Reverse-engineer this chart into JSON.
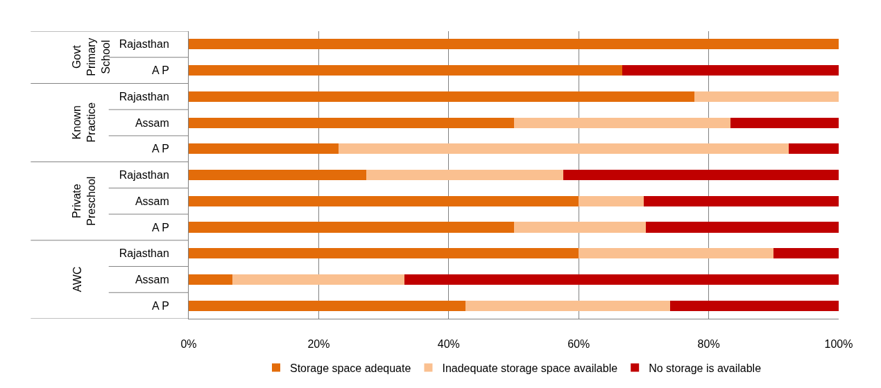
{
  "chart_data": {
    "type": "bar",
    "orientation": "horizontal",
    "stacked": true,
    "categories": [
      "Rajasthan",
      "A P",
      "Rajasthan",
      "Assam",
      "A P",
      "Rajasthan",
      "Assam",
      "A P",
      "Rajasthan",
      "Assam",
      "A P"
    ],
    "series": [
      {
        "name": "Storage space adequate",
        "color": "#e36c0a",
        "values": [
          100,
          66.7,
          77.8,
          50,
          23.1,
          27.3,
          60,
          50,
          60,
          6.7,
          42.6
        ]
      },
      {
        "name": "Inadequate storage space available",
        "color": "#fac090",
        "values": [
          0,
          0,
          22.2,
          33.3,
          69.2,
          30.3,
          10,
          20.3,
          30,
          26.5,
          31.5
        ]
      },
      {
        "name": "No storage is available",
        "color": "#c00000",
        "values": [
          0,
          33.3,
          0,
          16.7,
          7.7,
          42.4,
          30,
          29.7,
          10,
          66.8,
          25.9
        ]
      }
    ],
    "xlim": [
      0,
      100
    ],
    "xticks": [
      {
        "value": 0,
        "label": "0%"
      },
      {
        "value": 20,
        "label": "20%"
      },
      {
        "value": 40,
        "label": "40%"
      },
      {
        "value": 60,
        "label": "60%"
      },
      {
        "value": 80,
        "label": "80%"
      },
      {
        "value": 100,
        "label": "100%"
      }
    ],
    "grid": "x",
    "legend": "bottom",
    "annotations": [
      "Govt Primary School",
      "Known Practice",
      "Private Preschool",
      "AWC"
    ]
  }
}
